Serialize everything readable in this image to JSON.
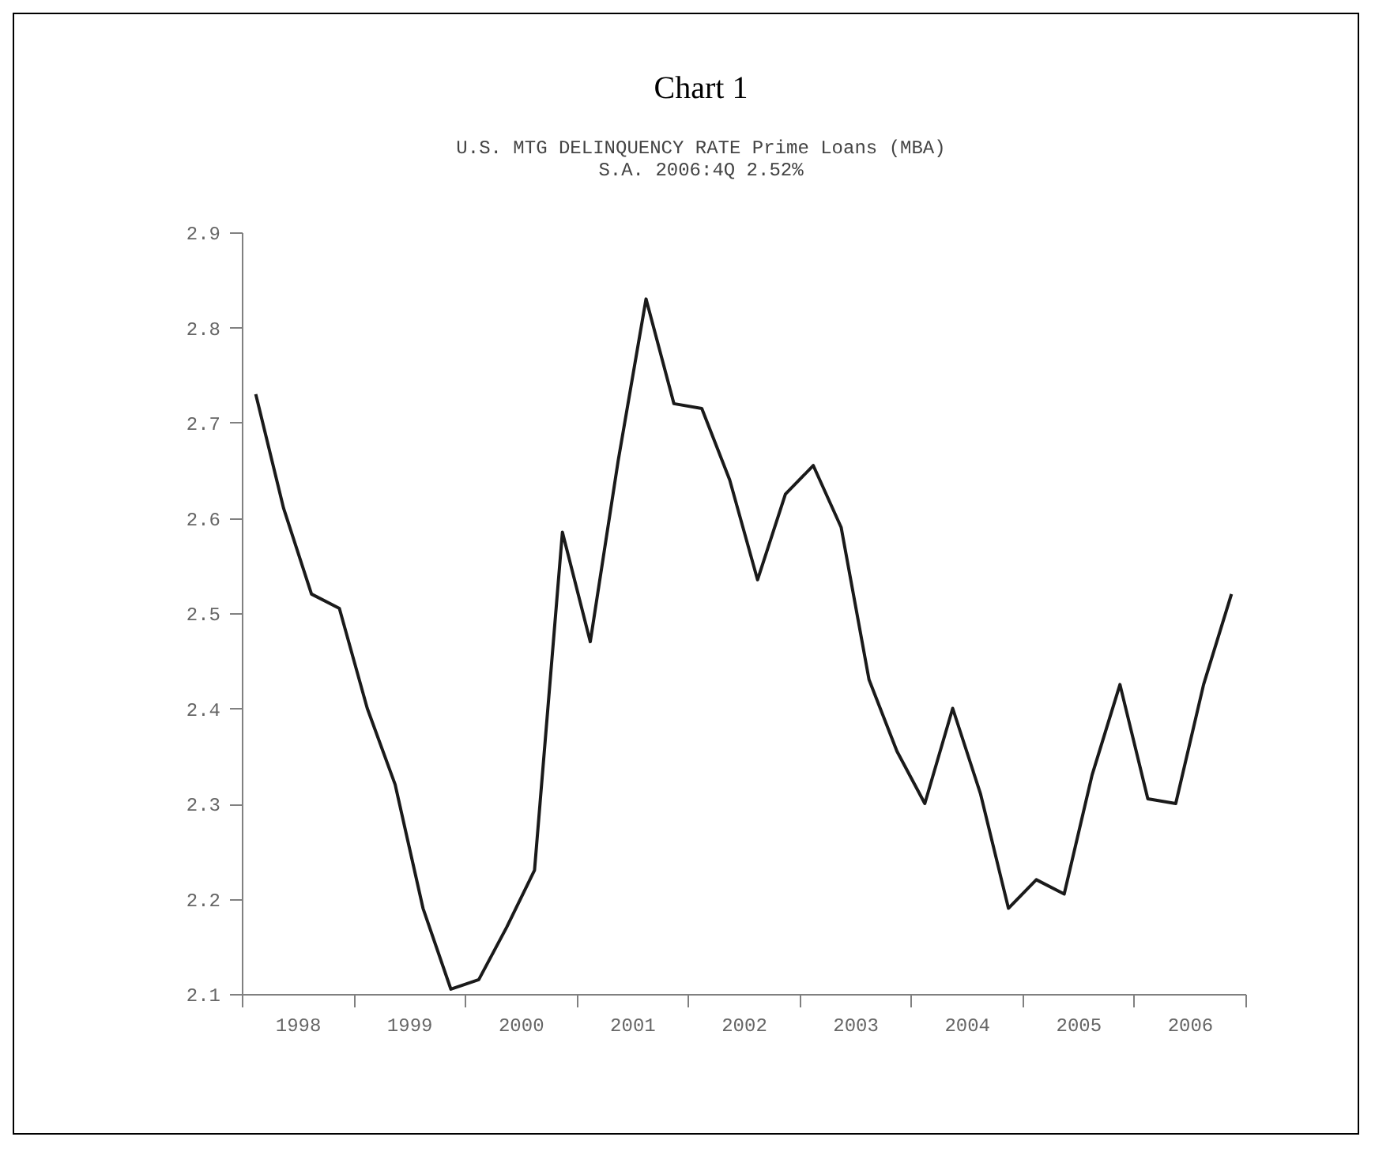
{
  "chart_data": {
    "type": "line",
    "title": "Chart 1",
    "subtitle": "U.S. MTG DELINQUENCY RATE  Prime Loans (MBA)\nS.A.  2006:4Q 2.52%",
    "x": [
      1998.125,
      1998.375,
      1998.625,
      1998.875,
      1999.125,
      1999.375,
      1999.625,
      1999.875,
      2000.125,
      2000.375,
      2000.625,
      2000.875,
      2001.125,
      2001.375,
      2001.625,
      2001.875,
      2002.125,
      2002.375,
      2002.625,
      2002.875,
      2003.125,
      2003.375,
      2003.625,
      2003.875,
      2004.125,
      2004.375,
      2004.625,
      2004.875,
      2005.125,
      2005.375,
      2005.625,
      2005.875,
      2006.125,
      2006.375,
      2006.625,
      2006.875
    ],
    "series": [
      {
        "color": "#1a1a1a",
        "values": [
          2.73,
          2.61,
          2.52,
          2.505,
          2.4,
          2.32,
          2.19,
          2.105,
          2.115,
          2.17,
          2.23,
          2.585,
          2.47,
          2.66,
          2.83,
          2.72,
          2.715,
          2.64,
          2.535,
          2.625,
          2.655,
          2.59,
          2.43,
          2.355,
          2.3,
          2.4,
          2.31,
          2.19,
          2.22,
          2.205,
          2.33,
          2.425,
          2.305,
          2.3,
          2.425,
          2.52
        ]
      }
    ],
    "xlim": [
      1998,
      2007
    ],
    "xticks": [
      {
        "value": 1998,
        "label": null
      },
      {
        "value": 1998.5,
        "label": "1998"
      },
      {
        "value": 1999,
        "label": null
      },
      {
        "value": 1999.5,
        "label": "1999"
      },
      {
        "value": 2000,
        "label": null
      },
      {
        "value": 2000.5,
        "label": "2000"
      },
      {
        "value": 2001,
        "label": null
      },
      {
        "value": 2001.5,
        "label": "2001"
      },
      {
        "value": 2002,
        "label": null
      },
      {
        "value": 2002.5,
        "label": "2002"
      },
      {
        "value": 2003,
        "label": null
      },
      {
        "value": 2003.5,
        "label": "2003"
      },
      {
        "value": 2004,
        "label": null
      },
      {
        "value": 2004.5,
        "label": "2004"
      },
      {
        "value": 2005,
        "label": null
      },
      {
        "value": 2005.5,
        "label": "2005"
      },
      {
        "value": 2006,
        "label": null
      },
      {
        "value": 2006.5,
        "label": "2006"
      },
      {
        "value": 2007,
        "label": null
      }
    ],
    "ylim": [
      2.1,
      2.9
    ],
    "yticks": [
      2.1,
      2.2,
      2.3,
      2.4,
      2.5,
      2.6,
      2.7,
      2.8,
      2.9
    ]
  }
}
